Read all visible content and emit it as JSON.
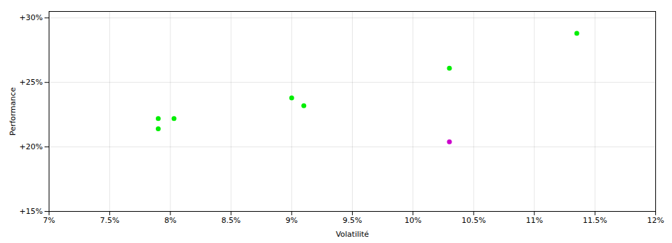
{
  "chart_data": {
    "type": "scatter",
    "xlabel": "Volatilité",
    "ylabel": "Performance",
    "xlim": [
      0.07,
      0.12
    ],
    "ylim": [
      0.15,
      0.305
    ],
    "xticks": [
      {
        "value": 0.07,
        "label": "7%"
      },
      {
        "value": 0.075,
        "label": "7.5%"
      },
      {
        "value": 0.08,
        "label": "8%"
      },
      {
        "value": 0.085,
        "label": "8.5%"
      },
      {
        "value": 0.09,
        "label": "9%"
      },
      {
        "value": 0.095,
        "label": "9.5%"
      },
      {
        "value": 0.1,
        "label": "10%"
      },
      {
        "value": 0.105,
        "label": "10.5%"
      },
      {
        "value": 0.11,
        "label": "11%"
      },
      {
        "value": 0.115,
        "label": "11.5%"
      },
      {
        "value": 0.12,
        "label": "12%"
      }
    ],
    "yticks": [
      {
        "value": 0.15,
        "label": "+15%"
      },
      {
        "value": 0.2,
        "label": "+20%"
      },
      {
        "value": 0.25,
        "label": "+25%"
      },
      {
        "value": 0.3,
        "label": "+30%"
      }
    ],
    "grid": true,
    "series": [
      {
        "color": "#00ee00",
        "marker": "circle",
        "x": [
          0.079,
          0.0803,
          0.079,
          0.09,
          0.091,
          0.103,
          0.1135
        ],
        "y": [
          0.222,
          0.222,
          0.214,
          0.238,
          0.232,
          0.261,
          0.288
        ]
      },
      {
        "color": "#cc00cc",
        "marker": "circle",
        "x": [
          0.103
        ],
        "y": [
          0.204
        ]
      }
    ]
  }
}
